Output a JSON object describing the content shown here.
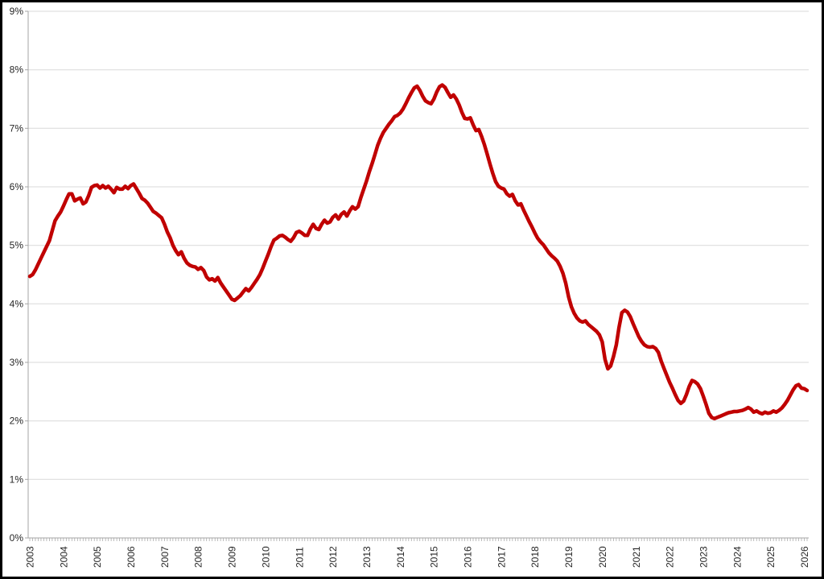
{
  "chart": {
    "accent_color": "#C00000",
    "grid_color": "#D9D9D9",
    "axis_color": "#A6A6A6",
    "label_color": "#262626",
    "frame_color": "#000000",
    "background_color": "#FFFFFF"
  },
  "chart_data": {
    "type": "line",
    "title": "",
    "x_unit": "month",
    "x_start": "2003-01",
    "x_end": "2026-02",
    "x_tick_labels": [
      "2003",
      "2004",
      "2005",
      "2006",
      "2007",
      "2008",
      "2009",
      "2010",
      "2011",
      "2012",
      "2013",
      "2014",
      "2015",
      "2016",
      "2017",
      "2018",
      "2019",
      "2020",
      "2021",
      "2022",
      "2023",
      "2024",
      "2025",
      "2026"
    ],
    "y_tick_labels": [
      "0%",
      "1%",
      "2%",
      "3%",
      "4%",
      "5%",
      "6%",
      "7%",
      "8%",
      "9%"
    ],
    "ylim": [
      0,
      9
    ],
    "grid": true,
    "legend_position": "none",
    "series": [
      {
        "name": "line-series",
        "color": "#C00000",
        "values": [
          4.47,
          4.5,
          4.58,
          4.68,
          4.78,
          4.88,
          4.98,
          5.08,
          5.25,
          5.42,
          5.5,
          5.57,
          5.67,
          5.78,
          5.88,
          5.88,
          5.76,
          5.79,
          5.81,
          5.71,
          5.74,
          5.85,
          5.99,
          6.02,
          6.03,
          5.98,
          6.02,
          5.98,
          6.01,
          5.96,
          5.9,
          5.99,
          5.96,
          5.96,
          6.01,
          5.97,
          6.02,
          6.05,
          5.97,
          5.89,
          5.8,
          5.77,
          5.72,
          5.65,
          5.58,
          5.55,
          5.51,
          5.47,
          5.36,
          5.23,
          5.13,
          5.0,
          4.91,
          4.84,
          4.89,
          4.78,
          4.7,
          4.66,
          4.64,
          4.63,
          4.59,
          4.62,
          4.57,
          4.46,
          4.41,
          4.43,
          4.39,
          4.45,
          4.36,
          4.29,
          4.22,
          4.15,
          4.08,
          4.06,
          4.1,
          4.14,
          4.2,
          4.26,
          4.22,
          4.28,
          4.35,
          4.42,
          4.5,
          4.61,
          4.73,
          4.85,
          4.98,
          5.09,
          5.12,
          5.16,
          5.17,
          5.14,
          5.1,
          5.07,
          5.13,
          5.22,
          5.24,
          5.21,
          5.17,
          5.17,
          5.28,
          5.36,
          5.29,
          5.27,
          5.36,
          5.43,
          5.38,
          5.4,
          5.48,
          5.52,
          5.45,
          5.53,
          5.57,
          5.5,
          5.59,
          5.66,
          5.62,
          5.66,
          5.82,
          5.96,
          6.1,
          6.26,
          6.4,
          6.55,
          6.71,
          6.83,
          6.93,
          7.0,
          7.07,
          7.13,
          7.2,
          7.22,
          7.26,
          7.33,
          7.42,
          7.52,
          7.61,
          7.69,
          7.72,
          7.65,
          7.55,
          7.47,
          7.44,
          7.42,
          7.5,
          7.62,
          7.71,
          7.74,
          7.7,
          7.61,
          7.53,
          7.57,
          7.5,
          7.4,
          7.27,
          7.17,
          7.16,
          7.18,
          7.06,
          6.96,
          6.98,
          6.86,
          6.72,
          6.56,
          6.39,
          6.23,
          6.09,
          6.01,
          5.98,
          5.96,
          5.88,
          5.84,
          5.87,
          5.76,
          5.69,
          5.71,
          5.6,
          5.5,
          5.4,
          5.31,
          5.21,
          5.12,
          5.06,
          5.01,
          4.94,
          4.87,
          4.82,
          4.78,
          4.73,
          4.64,
          4.52,
          4.35,
          4.12,
          3.95,
          3.84,
          3.76,
          3.71,
          3.69,
          3.71,
          3.65,
          3.61,
          3.57,
          3.53,
          3.47,
          3.35,
          3.05,
          2.89,
          2.94,
          3.1,
          3.3,
          3.6,
          3.85,
          3.89,
          3.86,
          3.78,
          3.66,
          3.55,
          3.44,
          3.36,
          3.3,
          3.27,
          3.26,
          3.27,
          3.24,
          3.17,
          3.02,
          2.9,
          2.78,
          2.66,
          2.56,
          2.45,
          2.35,
          2.3,
          2.34,
          2.45,
          2.59,
          2.69,
          2.67,
          2.63,
          2.55,
          2.42,
          2.28,
          2.13,
          2.06,
          2.04,
          2.06,
          2.08,
          2.1,
          2.12,
          2.14,
          2.15,
          2.16,
          2.16,
          2.17,
          2.18,
          2.2,
          2.23,
          2.2,
          2.15,
          2.17,
          2.14,
          2.12,
          2.15,
          2.13,
          2.14,
          2.17,
          2.15,
          2.18,
          2.22,
          2.28,
          2.35,
          2.44,
          2.53,
          2.6,
          2.62,
          2.56,
          2.55,
          2.52
        ]
      }
    ]
  }
}
